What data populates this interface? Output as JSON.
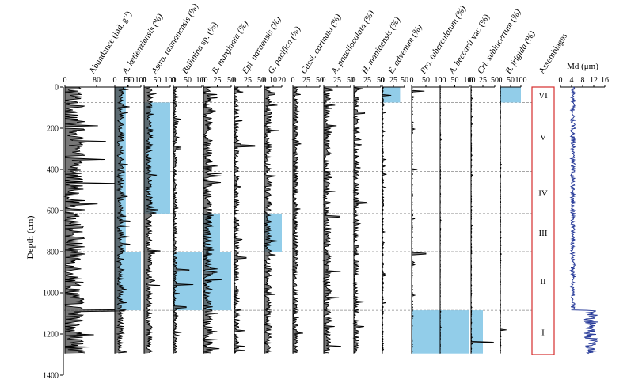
{
  "chart_data": {
    "type": "line",
    "title": "",
    "y_axis": {
      "label": "Depth (cm)",
      "range": [
        0,
        1400
      ],
      "ticks": [
        0,
        200,
        400,
        600,
        800,
        1000,
        1200,
        1400
      ]
    },
    "assemblage_boundaries_cm": [
      75,
      410,
      615,
      800,
      1085
    ],
    "panels": [
      {
        "label": "Abundance (ind. g⁻¹)",
        "label_parts": [
          "Abundance (ind. g",
          "-1",
          ")"
        ],
        "italic": false,
        "tick_labels": [
          "0",
          "80",
          "160"
        ],
        "xlim": [
          0,
          160
        ],
        "base": 15,
        "amp": 55,
        "spikes": [
          [
            640,
            28
          ],
          [
            1085,
            150
          ]
        ],
        "highlights": []
      },
      {
        "label": "A. ketienziensis (%)",
        "italic": true,
        "tick_labels": [
          "0",
          "50",
          "100"
        ],
        "xlim": [
          0,
          100
        ],
        "base": 18,
        "amp": 25,
        "spikes": [],
        "highlights": [
          [
            0,
            410,
            42
          ],
          [
            410,
            800,
            42
          ],
          [
            800,
            1085,
            100
          ]
        ]
      },
      {
        "label": "Astro. tasmanensis (%)",
        "italic": true,
        "tick_labels": [
          "0",
          "50",
          "100"
        ],
        "xlim": [
          0,
          100
        ],
        "base": 15,
        "amp": 25,
        "spikes": [],
        "highlights": [
          [
            75,
            615,
            100
          ]
        ]
      },
      {
        "label": "Bulimina sp. (%)",
        "label_parts": [
          "Bulimina",
          " sp. (%)"
        ],
        "italic": true,
        "tick_labels": [
          "0",
          "50",
          "100"
        ],
        "xlim": [
          0,
          100
        ],
        "base": 4,
        "amp": 12,
        "spikes": [
          [
            890,
            55
          ],
          [
            960,
            70
          ],
          [
            1070,
            45
          ]
        ],
        "highlights": [
          [
            800,
            1085,
            100
          ]
        ]
      },
      {
        "label": "B. marginata (%)",
        "italic": true,
        "tick_labels": [
          "0",
          "25",
          "50"
        ],
        "xlim": [
          0,
          50
        ],
        "base": 5,
        "amp": 18,
        "spikes": [
          [
            900,
            25
          ]
        ],
        "highlights": [
          [
            615,
            800,
            30
          ],
          [
            800,
            1085,
            50
          ]
        ]
      },
      {
        "label": "Epi. naraensis (%)",
        "italic": true,
        "tick_labels": [
          "0",
          "25",
          "50"
        ],
        "xlim": [
          0,
          50
        ],
        "base": 1,
        "amp": 12,
        "spikes": [
          [
            285,
            38
          ],
          [
            830,
            22
          ]
        ],
        "highlights": []
      },
      {
        "label": "G. pacifica (%)",
        "italic": true,
        "tick_labels": [
          "0",
          "10",
          "20"
        ],
        "xlim": [
          0,
          20
        ],
        "base": 3,
        "amp": 8,
        "spikes": [
          [
            30,
            12
          ]
        ],
        "highlights": [
          [
            615,
            800,
            20
          ]
        ]
      },
      {
        "label": "Cassi. carinata (%)",
        "italic": true,
        "tick_labels": [
          "0",
          "25",
          "50"
        ],
        "xlim": [
          0,
          50
        ],
        "base": 3,
        "amp": 10,
        "spikes": [
          [
            120,
            12
          ]
        ],
        "highlights": []
      },
      {
        "label": "A. pauciloculata (%)",
        "italic": true,
        "tick_labels": [
          "0",
          "25",
          "50"
        ],
        "xlim": [
          0,
          50
        ],
        "base": 4,
        "amp": 14,
        "spikes": [
          [
            630,
            30
          ]
        ],
        "highlights": []
      },
      {
        "label": "H. maniaensis (%)",
        "italic": true,
        "tick_labels": [
          "0",
          "25",
          "50"
        ],
        "xlim": [
          0,
          50
        ],
        "base": 1,
        "amp": 14,
        "spikes": [
          [
            125,
            20
          ]
        ],
        "highlights": []
      },
      {
        "label": "E. advenum (%)",
        "italic": true,
        "tick_labels": [
          "0",
          "25",
          "50"
        ],
        "xlim": [
          0,
          50
        ],
        "base": 0,
        "amp": 4,
        "spikes": [
          [
            40,
            20
          ]
        ],
        "highlights": [
          [
            0,
            75,
            40
          ]
        ]
      },
      {
        "label": "Pro. tuberculatum (%)",
        "italic": true,
        "tick_labels": [
          "0",
          "50",
          "100"
        ],
        "xlim": [
          0,
          100
        ],
        "base": 0,
        "amp": 6,
        "spikes": [
          [
            20,
            45
          ],
          [
            400,
            20
          ],
          [
            810,
            50
          ]
        ],
        "highlights": [
          [
            1085,
            1295,
            100
          ]
        ]
      },
      {
        "label": "A. beccarii var. (%)",
        "label_parts": [
          "A. beccarii",
          " var. (%)"
        ],
        "italic": true,
        "tick_labels": [
          "0",
          "50",
          "100"
        ],
        "xlim": [
          0,
          100
        ],
        "base": 0,
        "amp": 2,
        "spikes": [],
        "highlights": [
          [
            1085,
            1295,
            100
          ]
        ]
      },
      {
        "label": "Cri. subincertum (%)",
        "italic": true,
        "tick_labels": [
          "0",
          "25",
          "50"
        ],
        "xlim": [
          0,
          50
        ],
        "base": 0,
        "amp": 2,
        "spikes": [
          [
            1240,
            48
          ]
        ],
        "highlights": [
          [
            1085,
            1295,
            25
          ]
        ]
      },
      {
        "label": "B. frigida (%)",
        "italic": true,
        "tick_labels": [
          "0",
          "50",
          "100"
        ],
        "xlim": [
          0,
          100
        ],
        "base": 0,
        "amp": 3,
        "spikes": [
          [
            1180,
            30
          ]
        ],
        "highlights": [
          [
            0,
            75,
            100
          ]
        ]
      }
    ],
    "assemblages": {
      "title": "Assemblages",
      "zones": [
        {
          "label": "VI",
          "top": 0,
          "bottom": 75
        },
        {
          "label": "V",
          "top": 75,
          "bottom": 410
        },
        {
          "label": "IV",
          "top": 410,
          "bottom": 615
        },
        {
          "label": "III",
          "top": 615,
          "bottom": 800
        },
        {
          "label": "II",
          "top": 800,
          "bottom": 1085
        },
        {
          "label": "I",
          "top": 1085,
          "bottom": 1295
        }
      ]
    },
    "md": {
      "label": "Md (μm)",
      "tick_labels": [
        "0",
        "4",
        "8",
        "12",
        "16"
      ],
      "xlim": [
        0,
        16
      ],
      "segments": [
        {
          "from": 0,
          "to": 1085,
          "mean": 4.5,
          "amp": 0.8
        },
        {
          "from": 1085,
          "to": 1295,
          "mean": 11,
          "amp": 2.5
        }
      ]
    },
    "series_color": "#3d3d3d",
    "highlight_color": "#92cde9",
    "box_color": "#d62d2d",
    "md_color": "#2a3d9a"
  }
}
